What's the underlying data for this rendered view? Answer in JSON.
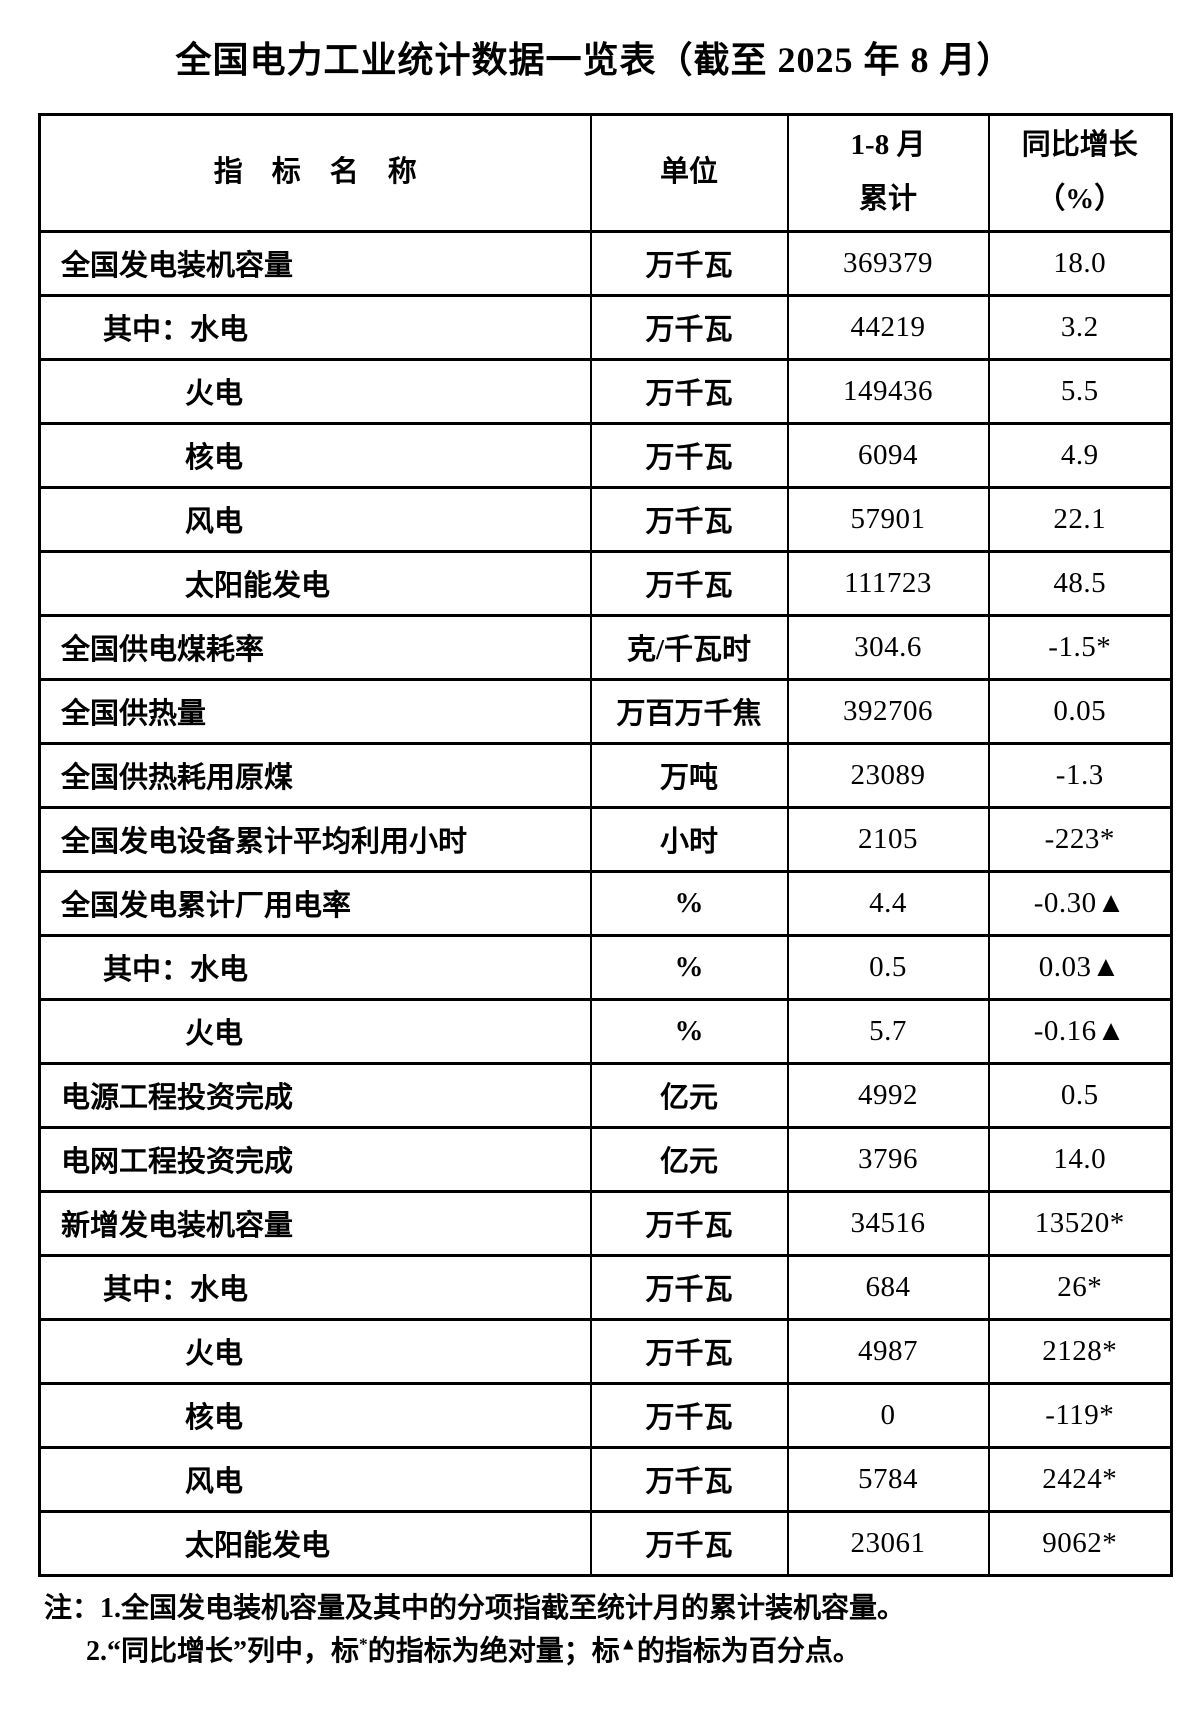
{
  "title": "全国电力工业统计数据一览表（截至 2025 年 8 月）",
  "colors": {
    "background": "#ffffff",
    "text": "#000000",
    "border": "#000000"
  },
  "table": {
    "headers": [
      "指　标　名　称",
      "单位",
      "1-8 月\n累计",
      "同比增长\n（%）"
    ],
    "rows": [
      {
        "label": "全国发电装机容量",
        "indent": 0,
        "unit": "万千瓦",
        "value": "369379",
        "growth": "18.0"
      },
      {
        "label": "其中：水电",
        "indent": 1,
        "unit": "万千瓦",
        "value": "44219",
        "growth": "3.2"
      },
      {
        "label": "火电",
        "indent": 2,
        "unit": "万千瓦",
        "value": "149436",
        "growth": "5.5"
      },
      {
        "label": "核电",
        "indent": 2,
        "unit": "万千瓦",
        "value": "6094",
        "growth": "4.9"
      },
      {
        "label": "风电",
        "indent": 2,
        "unit": "万千瓦",
        "value": "57901",
        "growth": "22.1"
      },
      {
        "label": "太阳能发电",
        "indent": 2,
        "unit": "万千瓦",
        "value": "111723",
        "growth": "48.5"
      },
      {
        "label": "全国供电煤耗率",
        "indent": 0,
        "unit": "克/千瓦时",
        "value": "304.6",
        "growth": "-1.5*"
      },
      {
        "label": "全国供热量",
        "indent": 0,
        "unit": "万百万千焦",
        "value": "392706",
        "growth": "0.05"
      },
      {
        "label": "全国供热耗用原煤",
        "indent": 0,
        "unit": "万吨",
        "value": "23089",
        "growth": "-1.3"
      },
      {
        "label": "全国发电设备累计平均利用小时",
        "indent": 0,
        "unit": "小时",
        "value": "2105",
        "growth": "-223*"
      },
      {
        "label": "全国发电累计厂用电率",
        "indent": 0,
        "unit": "%",
        "value": "4.4",
        "growth": "-0.30▲"
      },
      {
        "label": "其中：水电",
        "indent": 1,
        "unit": "%",
        "value": "0.5",
        "growth": "0.03▲"
      },
      {
        "label": "火电",
        "indent": 2,
        "unit": "%",
        "value": "5.7",
        "growth": "-0.16▲"
      },
      {
        "label": "电源工程投资完成",
        "indent": 0,
        "unit": "亿元",
        "value": "4992",
        "growth": "0.5"
      },
      {
        "label": "电网工程投资完成",
        "indent": 0,
        "unit": "亿元",
        "value": "3796",
        "growth": "14.0"
      },
      {
        "label": "新增发电装机容量",
        "indent": 0,
        "unit": "万千瓦",
        "value": "34516",
        "growth": "13520*"
      },
      {
        "label": "其中：水电",
        "indent": 1,
        "unit": "万千瓦",
        "value": "684",
        "growth": "26*"
      },
      {
        "label": "火电",
        "indent": 2,
        "unit": "万千瓦",
        "value": "4987",
        "growth": "2128*"
      },
      {
        "label": "核电",
        "indent": 2,
        "unit": "万千瓦",
        "value": "0",
        "growth": "-119*"
      },
      {
        "label": "风电",
        "indent": 2,
        "unit": "万千瓦",
        "value": "5784",
        "growth": "2424*"
      },
      {
        "label": "太阳能发电",
        "indent": 2,
        "unit": "万千瓦",
        "value": "23061",
        "growth": "9062*"
      }
    ]
  },
  "notes": {
    "note1": "注：1.全国发电装机容量及其中的分项指截至统计月的累计装机容量。",
    "note2_prefix": "2.“同比增长”列中，标",
    "note2_sup1": "*",
    "note2_mid": "的指标为绝对量；标",
    "note2_sup2": "▲",
    "note2_suffix": "的指标为百分点。"
  }
}
